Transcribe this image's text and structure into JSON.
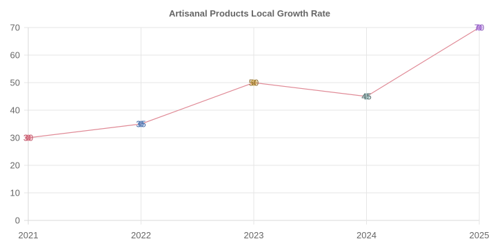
{
  "chart_data": {
    "type": "line",
    "title": "Artisanal Products Local Growth Rate",
    "xlabel": "",
    "ylabel": "",
    "categories": [
      "2021",
      "2022",
      "2023",
      "2024",
      "2025"
    ],
    "series": [
      {
        "values": [
          30,
          35,
          50,
          45,
          70
        ],
        "line_color": "#e08a96",
        "point_colors": [
          "#e07b8b",
          "#6b8fc4",
          "#c9a24a",
          "#8ab0b0",
          "#b07be0"
        ],
        "label_colors": [
          "#c0566a",
          "#4a6ea8",
          "#8a6a2a",
          "#5a7070",
          "#8a5ab8"
        ]
      }
    ],
    "ylim": [
      0,
      70
    ],
    "yticks": [
      0,
      10,
      20,
      30,
      40,
      50,
      60,
      70
    ],
    "grid": true,
    "legend": "none",
    "data_labels": true
  }
}
